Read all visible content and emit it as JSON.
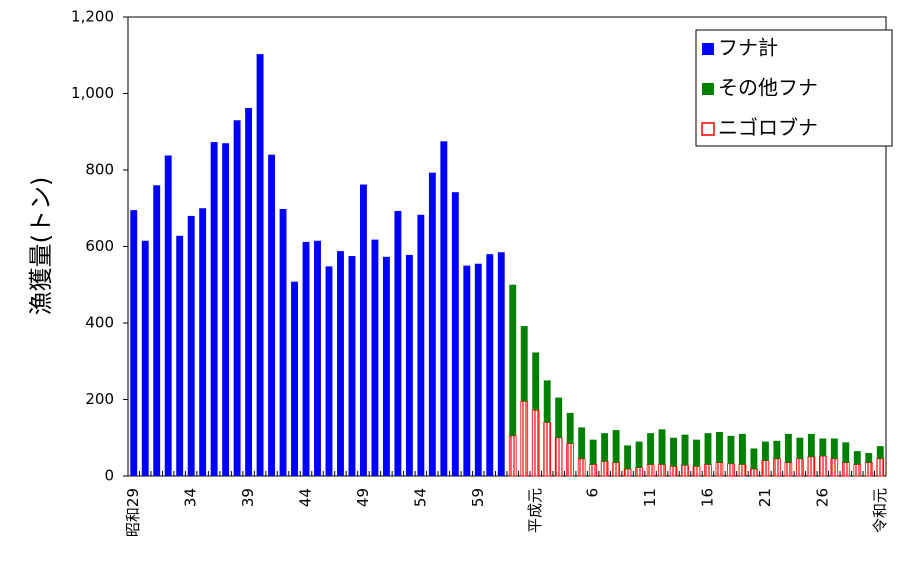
{
  "chart_data": {
    "type": "stacked-bar",
    "y_label": "漁獲量(トン)",
    "categories": [
      "昭和29",
      null,
      null,
      null,
      null,
      "34",
      null,
      null,
      null,
      null,
      "39",
      null,
      null,
      null,
      null,
      "44",
      null,
      null,
      null,
      null,
      "49",
      null,
      null,
      null,
      null,
      "54",
      null,
      null,
      null,
      null,
      "59",
      null,
      null,
      null,
      null,
      "平成元",
      null,
      null,
      null,
      null,
      "6",
      null,
      null,
      null,
      null,
      "11",
      null,
      null,
      null,
      null,
      "16",
      null,
      null,
      null,
      null,
      "21",
      null,
      null,
      null,
      null,
      "26",
      null,
      null,
      null,
      null,
      "令和元"
    ],
    "series": [
      {
        "name": "フナ計",
        "color": "#0000ff",
        "values": [
          695,
          615,
          760,
          838,
          628,
          680,
          700,
          873,
          870,
          930,
          962,
          1103,
          840,
          698,
          508,
          612,
          615,
          548,
          588,
          575,
          762,
          618,
          573,
          693,
          578,
          683,
          793,
          875,
          742,
          550,
          555,
          580,
          585,
          null,
          null,
          null,
          null,
          null,
          null,
          null,
          null,
          null,
          null,
          null,
          null,
          null,
          null,
          null,
          null,
          null,
          null,
          null,
          null,
          null,
          null,
          null,
          null,
          null,
          null,
          null,
          null,
          null,
          null,
          null,
          null,
          null
        ]
      },
      {
        "name": "ニゴロブナ",
        "color": "#ff0000",
        "pattern": "striped",
        "values": [
          null,
          null,
          null,
          null,
          null,
          null,
          null,
          null,
          null,
          null,
          null,
          null,
          null,
          null,
          null,
          null,
          null,
          null,
          null,
          null,
          null,
          null,
          null,
          null,
          null,
          null,
          null,
          null,
          null,
          null,
          null,
          null,
          null,
          105,
          195,
          172,
          140,
          100,
          85,
          45,
          30,
          38,
          35,
          18,
          22,
          30,
          30,
          25,
          28,
          25,
          30,
          35,
          32,
          30,
          18,
          40,
          45,
          35,
          45,
          50,
          52,
          45,
          35,
          30,
          35,
          45
        ]
      },
      {
        "name": "その他フナ",
        "color": "#008000",
        "values": [
          null,
          null,
          null,
          null,
          null,
          null,
          null,
          null,
          null,
          null,
          null,
          null,
          null,
          null,
          null,
          null,
          null,
          null,
          null,
          null,
          null,
          null,
          null,
          null,
          null,
          null,
          null,
          null,
          null,
          null,
          null,
          null,
          null,
          395,
          197,
          151,
          110,
          105,
          80,
          82,
          65,
          74,
          85,
          62,
          68,
          82,
          92,
          75,
          80,
          70,
          82,
          80,
          73,
          80,
          54,
          50,
          47,
          75,
          55,
          60,
          46,
          53,
          53,
          35,
          25,
          33
        ]
      }
    ],
    "legend_order": [
      0,
      2,
      1
    ],
    "ylim": [
      0,
      1200
    ],
    "yticks": [
      0,
      200,
      400,
      600,
      800,
      {
        "value": 1000,
        "label": "1,000"
      },
      {
        "value": 1200,
        "label": "1,200"
      }
    ]
  }
}
